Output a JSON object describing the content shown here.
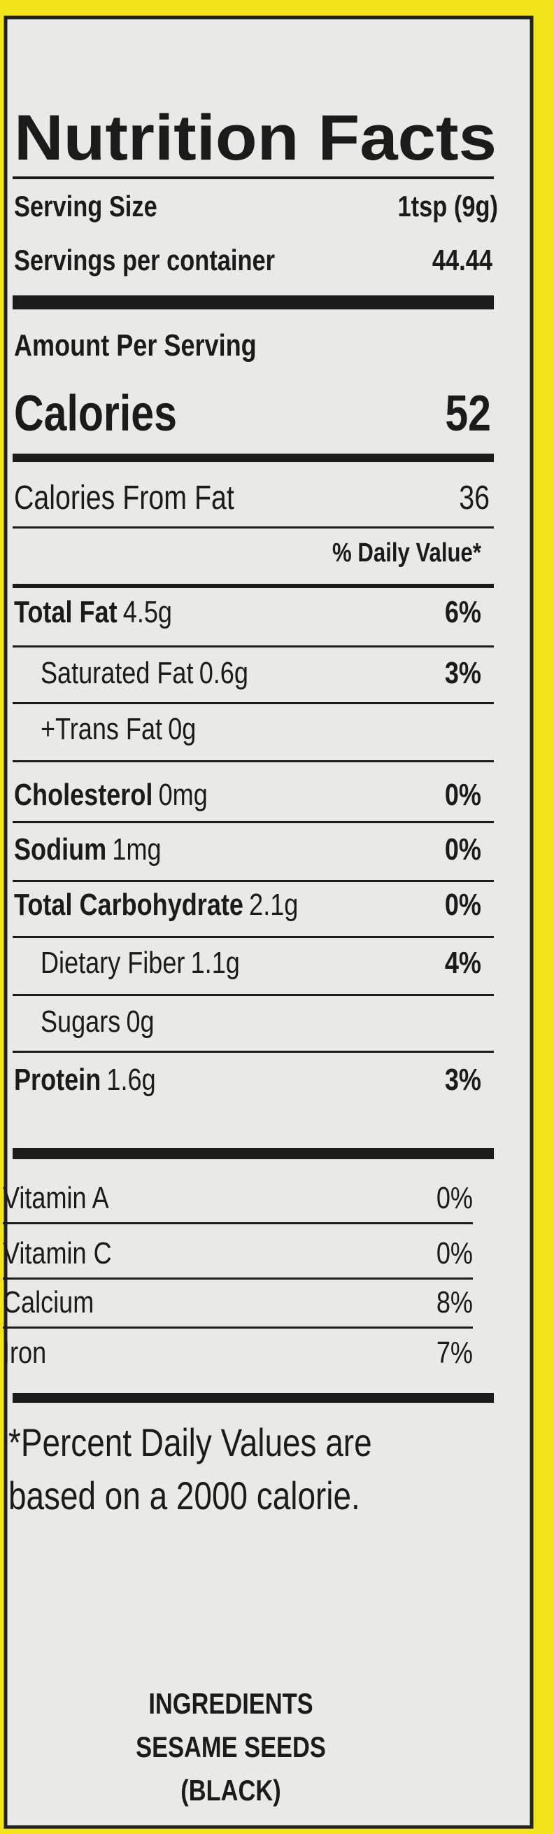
{
  "title": "Nutrition Facts",
  "serving": {
    "size_label": "Serving Size",
    "size_value": "1tsp (9g)",
    "per_container_label": "Servings per container",
    "per_container_value": "44.44"
  },
  "amount_per_serving": "Amount Per Serving",
  "calories": {
    "label": "Calories",
    "value": "52"
  },
  "calories_from_fat": {
    "label": "Calories From Fat",
    "value": "36"
  },
  "daily_value_header": "% Daily Value*",
  "nutrients": [
    {
      "name": "Total Fat",
      "amount": "4.5g",
      "dv": "6%"
    },
    {
      "name": "Saturated Fat",
      "amount": "0.6g",
      "dv": "3%"
    },
    {
      "name": "+Trans Fat",
      "amount": "0g"
    },
    {
      "name": "Cholesterol",
      "amount": "0mg",
      "dv": "0%"
    },
    {
      "name": "Sodium",
      "amount": "1mg",
      "dv": "0%"
    },
    {
      "name": "Total Carbohydrate",
      "amount": "2.1g",
      "dv": "0%"
    },
    {
      "name": "Dietary Fiber",
      "amount": "1.1g",
      "dv": "4%"
    },
    {
      "name": "Sugars",
      "amount": "0g"
    },
    {
      "name": "Protein",
      "amount": "1.6g",
      "dv": "3%"
    }
  ],
  "vitamins": [
    {
      "name": "Vitamin A",
      "dv": "0%"
    },
    {
      "name": "Vitamin C",
      "dv": "0%"
    },
    {
      "name": "Calcium",
      "dv": "8%"
    },
    {
      "name": "Iron",
      "dv": "7%"
    }
  ],
  "footnote": [
    "*Percent Daily Values are",
    "based on a 2000 calorie."
  ],
  "ingredients": [
    "INGREDIENTS",
    "SESAME SEEDS",
    "(BLACK)"
  ]
}
